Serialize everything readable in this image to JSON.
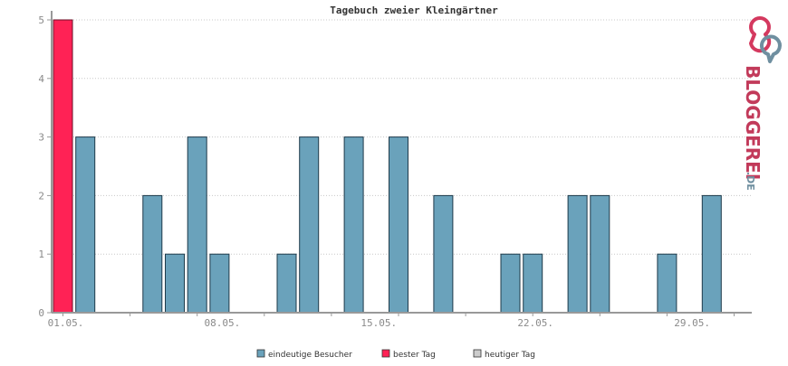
{
  "chart_data": {
    "type": "bar",
    "title": "Tagebuch zweier Kleingärtner",
    "ylim": [
      0,
      5
    ],
    "yticks": [
      0,
      1,
      2,
      3,
      4,
      5
    ],
    "days": [
      1,
      2,
      3,
      4,
      5,
      6,
      7,
      8,
      9,
      10,
      11,
      12,
      13,
      14,
      15,
      16,
      17,
      18,
      19,
      20,
      21,
      22,
      23,
      24,
      25,
      26,
      27,
      28,
      29,
      30,
      31
    ],
    "values": [
      5,
      3,
      0,
      0,
      2,
      1,
      3,
      1,
      0,
      0,
      1,
      3,
      0,
      3,
      0,
      3,
      0,
      2,
      0,
      0,
      1,
      1,
      0,
      2,
      2,
      0,
      0,
      1,
      0,
      2,
      0
    ],
    "best_day_index": 0,
    "xtick_labels": [
      {
        "day": 1,
        "label": "01.05."
      },
      {
        "day": 8,
        "label": "08.05."
      },
      {
        "day": 15,
        "label": "15.05."
      },
      {
        "day": 22,
        "label": "22.05."
      },
      {
        "day": 29,
        "label": "29.05."
      }
    ],
    "grid": true,
    "legend": {
      "placement": "bottom-center",
      "items": [
        {
          "label": "eindeutige Besucher",
          "color": "#6aa2bb"
        },
        {
          "label": "bester Tag",
          "color": "#ff2255"
        },
        {
          "label": "heutiger Tag",
          "color": "#cccccc"
        }
      ]
    },
    "colors": {
      "bar": "#6aa2bb",
      "best": "#ff2255",
      "outline": "#1e3a4a",
      "axis": "#999999",
      "grid": "#c8c8c8"
    }
  },
  "logo": {
    "main": "BLOGGEREI",
    "suffix": ".DE"
  }
}
